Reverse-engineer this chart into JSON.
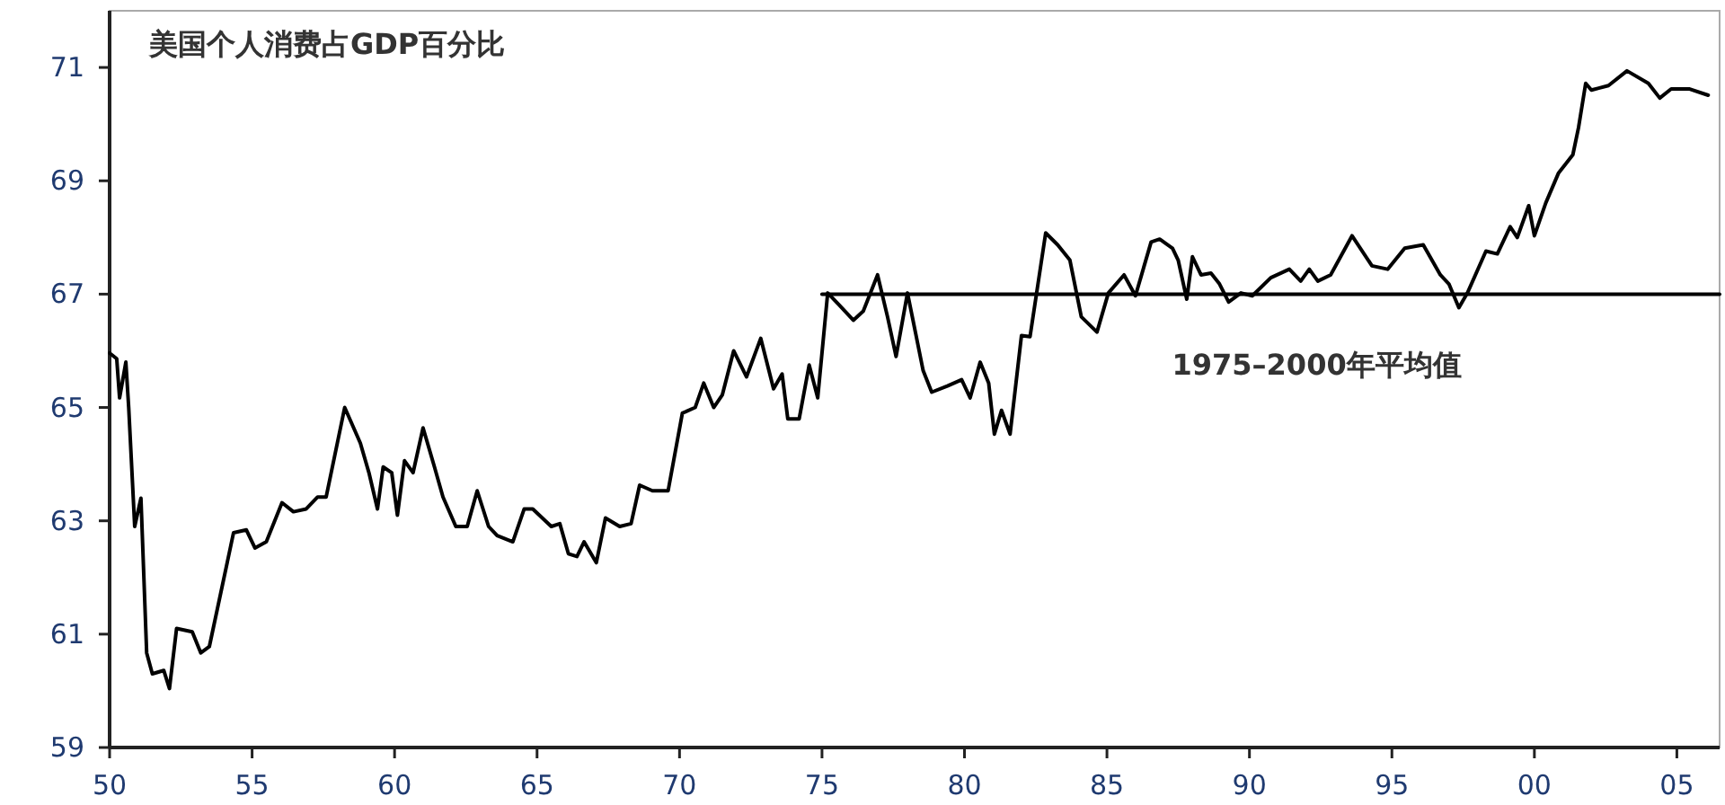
{
  "chart_data": {
    "type": "line",
    "title": "美国个人消费占GDP百分比",
    "line_style": "solid",
    "xlim": [
      1950,
      2006.5
    ],
    "ylim": [
      59,
      72
    ],
    "xticks": [
      {
        "value": 1950,
        "label": "50"
      },
      {
        "value": 1955,
        "label": "55"
      },
      {
        "value": 1960,
        "label": "60"
      },
      {
        "value": 1965,
        "label": "65"
      },
      {
        "value": 1970,
        "label": "70"
      },
      {
        "value": 1975,
        "label": "75"
      },
      {
        "value": 1980,
        "label": "80"
      },
      {
        "value": 1985,
        "label": "85"
      },
      {
        "value": 1990,
        "label": "90"
      },
      {
        "value": 1995,
        "label": "95"
      },
      {
        "value": 2000,
        "label": "00"
      },
      {
        "value": 2005,
        "label": "05"
      }
    ],
    "yticks": [
      59,
      61,
      63,
      65,
      67,
      69,
      71
    ],
    "series": [
      {
        "color": "#000000",
        "x": [
          1950.0,
          1950.25,
          1950.35,
          1950.57,
          1950.67,
          1950.88,
          1951.1,
          1951.3,
          1951.5,
          1951.9,
          1952.1,
          1952.35,
          1952.9,
          1953.2,
          1953.5,
          1954.35,
          1954.8,
          1955.1,
          1955.5,
          1956.05,
          1956.45,
          1956.9,
          1957.3,
          1957.6,
          1958.25,
          1958.8,
          1959.1,
          1959.4,
          1959.6,
          1959.9,
          1960.1,
          1960.35,
          1960.65,
          1961.0,
          1961.4,
          1961.7,
          1962.15,
          1962.55,
          1962.9,
          1963.3,
          1963.6,
          1964.15,
          1964.55,
          1964.85,
          1965.5,
          1965.8,
          1966.1,
          1966.4,
          1966.65,
          1967.08,
          1967.4,
          1967.9,
          1968.3,
          1968.6,
          1969.05,
          1969.6,
          1970.1,
          1970.55,
          1970.85,
          1971.2,
          1971.5,
          1971.9,
          1972.35,
          1972.85,
          1973.3,
          1973.6,
          1973.8,
          1974.2,
          1974.55,
          1974.85,
          1975.2,
          1975.6,
          1976.1,
          1976.45,
          1976.95,
          1977.3,
          1977.6,
          1978.0,
          1978.55,
          1978.85,
          1979.4,
          1979.9,
          1980.2,
          1980.55,
          1980.85,
          1981.05,
          1981.3,
          1981.6,
          1982.0,
          1982.3,
          1982.85,
          1983.27,
          1983.7,
          1984.1,
          1984.65,
          1985.05,
          1985.6,
          1986.0,
          1986.55,
          1986.85,
          1987.3,
          1987.5,
          1987.8,
          1988.0,
          1988.3,
          1988.65,
          1988.95,
          1989.27,
          1989.7,
          1990.1,
          1990.75,
          1991.4,
          1991.8,
          1992.1,
          1992.4,
          1992.85,
          1993.6,
          1994.3,
          1994.85,
          1995.45,
          1996.1,
          1996.7,
          1997.0,
          1997.35,
          1997.65,
          1998.3,
          1998.7,
          1999.15,
          1999.4,
          1999.8,
          2000.0,
          2000.4,
          2000.85,
          2001.35,
          2001.55,
          2001.8,
          2002.0,
          2002.6,
          2003.25,
          2004.0,
          2004.4,
          2004.8,
          2005.45,
          2006.1
        ],
        "values": [
          65.96,
          65.86,
          65.17,
          65.8,
          65.0,
          62.9,
          63.4,
          60.67,
          60.3,
          60.36,
          60.04,
          61.1,
          61.04,
          60.67,
          60.78,
          62.79,
          62.84,
          62.52,
          62.63,
          63.32,
          63.16,
          63.21,
          63.42,
          63.42,
          65.0,
          64.37,
          63.85,
          63.21,
          63.95,
          63.85,
          63.1,
          64.06,
          63.85,
          64.64,
          63.95,
          63.42,
          62.9,
          62.9,
          63.53,
          62.9,
          62.74,
          62.63,
          63.21,
          63.21,
          62.9,
          62.95,
          62.42,
          62.37,
          62.63,
          62.26,
          63.05,
          62.9,
          62.95,
          63.63,
          63.53,
          63.53,
          64.9,
          65.0,
          65.43,
          65.0,
          65.22,
          66.0,
          65.54,
          66.22,
          65.33,
          65.59,
          64.8,
          64.8,
          65.75,
          65.17,
          67.02,
          66.81,
          66.54,
          66.7,
          67.34,
          66.6,
          65.9,
          67.02,
          65.65,
          65.27,
          65.38,
          65.49,
          65.17,
          65.8,
          65.43,
          64.53,
          64.95,
          64.53,
          66.27,
          66.25,
          68.08,
          67.87,
          67.6,
          66.6,
          66.33,
          67.02,
          67.34,
          66.97,
          67.92,
          67.97,
          67.81,
          67.6,
          66.91,
          67.66,
          67.34,
          67.37,
          67.18,
          66.86,
          67.02,
          66.97,
          67.29,
          67.44,
          67.23,
          67.44,
          67.23,
          67.34,
          68.03,
          67.5,
          67.44,
          67.81,
          67.87,
          67.34,
          67.18,
          66.76,
          67.02,
          67.76,
          67.71,
          68.19,
          68.0,
          68.56,
          68.03,
          68.61,
          69.14,
          69.46,
          69.94,
          70.72,
          70.6,
          70.68,
          70.94,
          70.72,
          70.46,
          70.62,
          70.62,
          70.51
        ]
      },
      {
        "type": "line",
        "name": "1975–2000年平均值",
        "color": "#000000",
        "x": [
          1975,
          2006.5
        ],
        "values": [
          67,
          67
        ]
      }
    ]
  }
}
